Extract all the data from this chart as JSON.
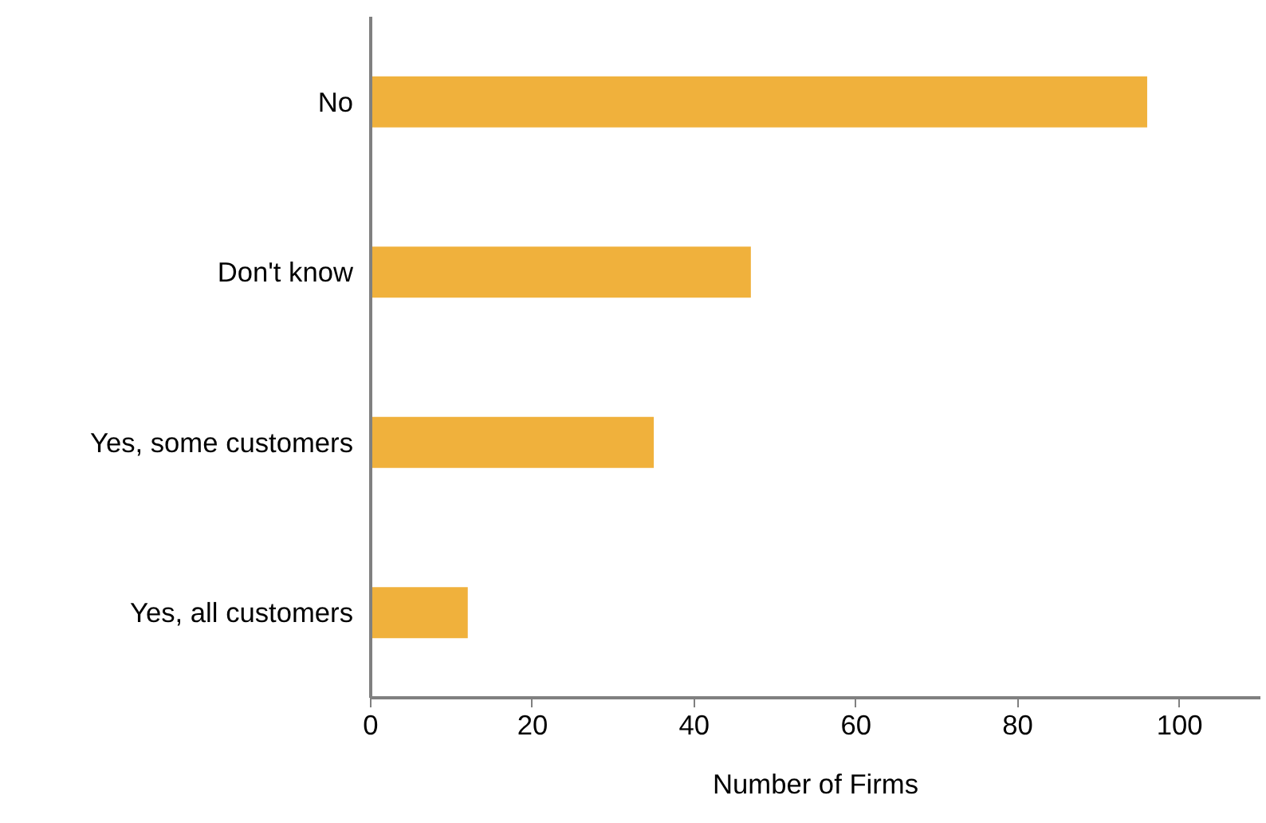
{
  "chart_data": {
    "type": "bar",
    "orientation": "horizontal",
    "categories": [
      "No",
      "Don't know",
      "Yes, some customers",
      "Yes, all customers"
    ],
    "values": [
      96,
      47,
      35,
      12
    ],
    "color": "#f0b13c",
    "xlabel": "Number of Firms",
    "xlim": [
      0,
      110
    ],
    "xticks": [
      0,
      20,
      40,
      60,
      80,
      100
    ],
    "grid": false
  }
}
